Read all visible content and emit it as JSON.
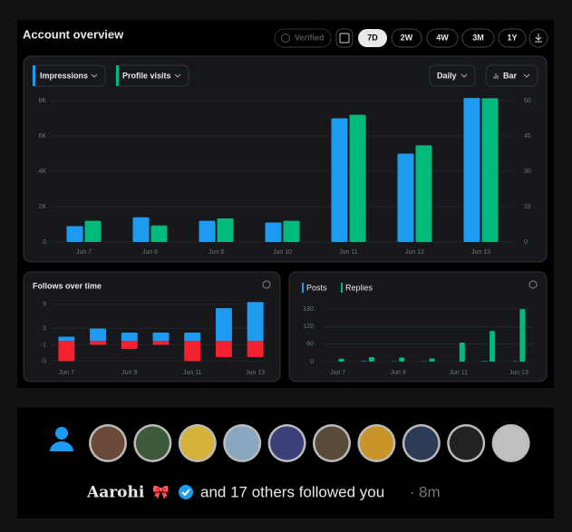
{
  "header": {
    "title": "Account overview",
    "verified_label": "Verified",
    "ranges": [
      "7D",
      "2W",
      "4W",
      "3M",
      "1Y"
    ],
    "selected_range": 0
  },
  "controls": {
    "interval": "Daily",
    "chart_style": "Bar"
  },
  "chart_data": [
    {
      "type": "bar",
      "categories": [
        "Jun 7",
        "Jun 8",
        "Jun 9",
        "Jun 10",
        "Jun 11",
        "Jun 12",
        "Jun 13"
      ],
      "series": [
        {
          "name": "Impressions",
          "color": "#1d9bf0",
          "values": [
            900,
            1400,
            1200,
            1100,
            7000,
            5000,
            8150
          ]
        },
        {
          "name": "Profile visits",
          "color": "#00ba7c",
          "axis": "y2",
          "values": [
            9,
            7,
            10,
            9,
            54,
            41,
            61
          ]
        }
      ],
      "ylim": [
        0,
        8000
      ],
      "yticks": [
        0,
        {
          "value": 2000,
          "label": "2K"
        },
        {
          "value": 4000,
          "label": "4K"
        },
        {
          "value": 6000,
          "label": "6K"
        },
        {
          "value": 8000,
          "label": "8K"
        }
      ],
      "y2lim": [
        0,
        60
      ],
      "y2ticks": [
        0,
        15,
        30,
        45,
        60
      ],
      "grid": true
    },
    {
      "type": "bar",
      "title": "Follows over time",
      "stacked": true,
      "categories": [
        "Jun 7",
        null,
        "Jun 9",
        null,
        "Jun 11",
        null,
        "Jun 13"
      ],
      "series": [
        {
          "color": "#1d9bf0",
          "values": [
            1,
            3,
            2,
            2,
            2,
            8,
            9.5
          ]
        },
        {
          "color": "#f4212e",
          "values": [
            -5,
            -1,
            -2,
            -1,
            -5,
            -4,
            -4
          ]
        }
      ],
      "ylim": [
        -6,
        10
      ],
      "yticks": [
        9,
        3,
        -1,
        -5
      ],
      "grid": true
    },
    {
      "type": "bar",
      "categories": [
        "Jun 7",
        null,
        "Jun 9",
        null,
        "Jun 11",
        null,
        "Jun 13"
      ],
      "series": [
        {
          "name": "Posts",
          "color": "#1d9bf0",
          "values": [
            0,
            2,
            1,
            1,
            0,
            2,
            1
          ]
        },
        {
          "name": "Replies",
          "color": "#00ba7c",
          "values": [
            10,
            15,
            14,
            11,
            65,
            105,
            180
          ]
        }
      ],
      "ylim": [
        0,
        180
      ],
      "yticks": [
        0,
        60,
        120,
        180
      ],
      "grid": true
    }
  ],
  "notification": {
    "name": "Aarohi",
    "emoji": "🎀",
    "text": "and 17 others followed you",
    "separator": "·",
    "time": "8m"
  }
}
